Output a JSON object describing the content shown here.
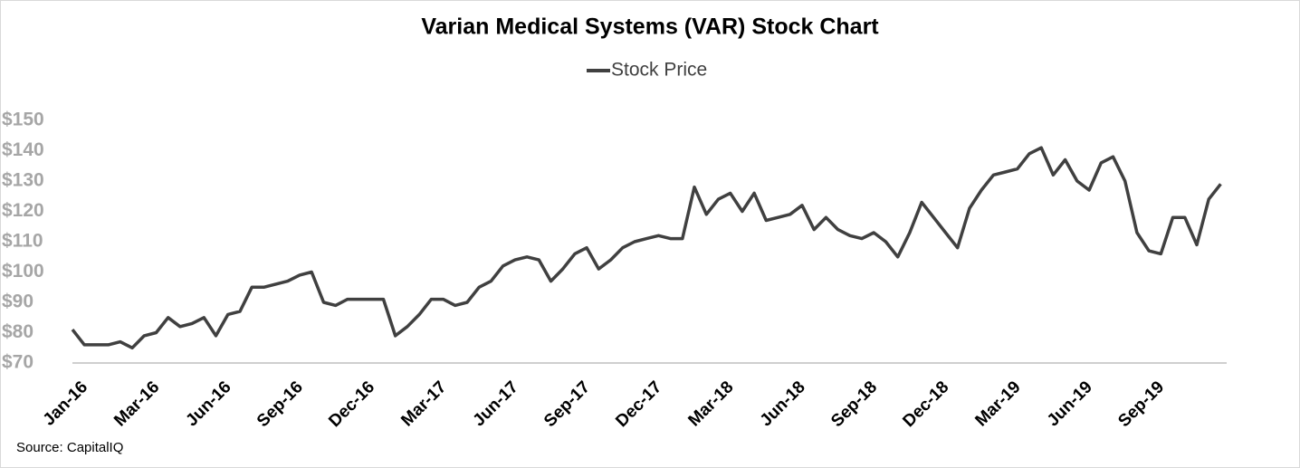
{
  "chart_data": {
    "type": "line",
    "title": "Varian Medical Systems (VAR) Stock Chart",
    "source": "Source:  CapitalIQ",
    "categories": [
      "Jan-16",
      null,
      null,
      null,
      null,
      null,
      "Mar-16",
      null,
      null,
      null,
      null,
      null,
      "Jun-16",
      null,
      null,
      null,
      null,
      null,
      "Sep-16",
      null,
      null,
      null,
      null,
      null,
      "Dec-16",
      null,
      null,
      null,
      null,
      null,
      "Mar-17",
      null,
      null,
      null,
      null,
      null,
      "Jun-17",
      null,
      null,
      null,
      null,
      null,
      "Sep-17",
      null,
      null,
      null,
      null,
      null,
      "Dec-17",
      null,
      null,
      null,
      null,
      null,
      "Mar-18",
      null,
      null,
      null,
      null,
      null,
      "Jun-18",
      null,
      null,
      null,
      null,
      null,
      "Sep-18",
      null,
      null,
      null,
      null,
      null,
      "Dec-18",
      null,
      null,
      null,
      null,
      null,
      "Mar-19",
      null,
      null,
      null,
      null,
      null,
      "Jun-19",
      null,
      null,
      null,
      null,
      null,
      "Sep-19",
      null,
      null,
      null,
      null,
      null,
      null
    ],
    "series": [
      {
        "name": "Stock Price",
        "color": "#404040",
        "values": [
          81,
          76,
          76,
          76,
          77,
          75,
          79,
          80,
          85,
          82,
          83,
          85,
          79,
          86,
          87,
          95,
          95,
          96,
          97,
          99,
          100,
          90,
          89,
          91,
          91,
          91,
          91,
          79,
          82,
          86,
          91,
          91,
          89,
          90,
          95,
          97,
          102,
          104,
          105,
          104,
          97,
          101,
          106,
          108,
          101,
          104,
          108,
          110,
          111,
          112,
          111,
          111,
          128,
          119,
          124,
          126,
          120,
          126,
          117,
          118,
          119,
          122,
          114,
          118,
          114,
          112,
          111,
          113,
          110,
          105,
          113,
          123,
          118,
          113,
          108,
          121,
          127,
          132,
          133,
          134,
          139,
          141,
          132,
          137,
          130,
          127,
          136,
          138,
          130,
          113,
          107,
          106,
          118,
          118,
          109,
          124,
          129
        ]
      }
    ],
    "ylim": [
      70,
      150
    ],
    "yticks": [
      {
        "value": 70,
        "label": "$70"
      },
      {
        "value": 80,
        "label": "$80"
      },
      {
        "value": 90,
        "label": "$90"
      },
      {
        "value": 100,
        "label": "$100"
      },
      {
        "value": 110,
        "label": "$110"
      },
      {
        "value": 120,
        "label": "$120"
      },
      {
        "value": 130,
        "label": "$130"
      },
      {
        "value": 140,
        "label": "$140"
      },
      {
        "value": 150,
        "label": "$150"
      }
    ],
    "grid": false,
    "legend": "top"
  }
}
